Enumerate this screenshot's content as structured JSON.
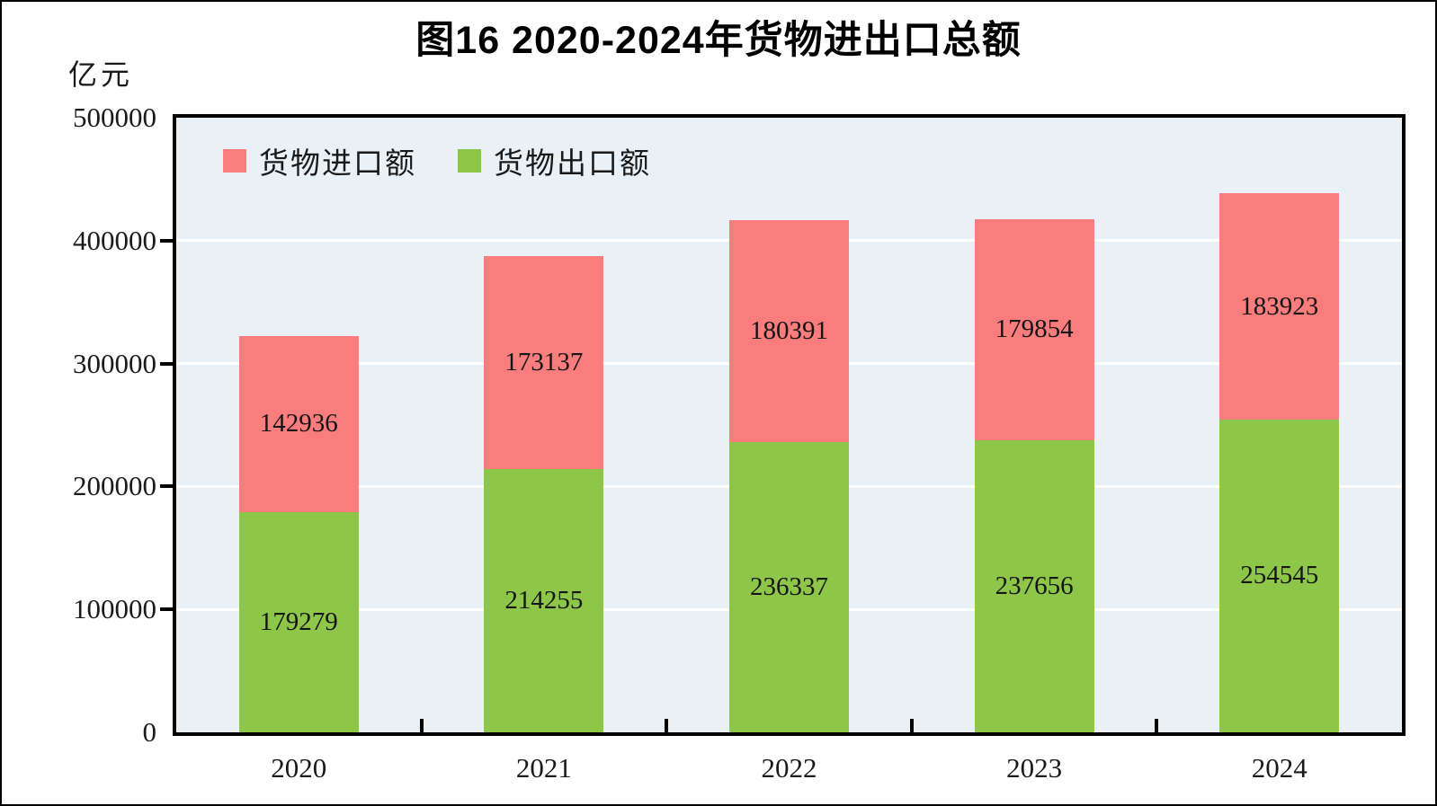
{
  "chart_data": {
    "type": "bar",
    "stacked": true,
    "title": "图16  2020-2024年货物进出口总额",
    "unit_label": "亿元",
    "categories": [
      "2020",
      "2021",
      "2022",
      "2023",
      "2024"
    ],
    "series": [
      {
        "name": "货物出口额",
        "color": "#8dc649",
        "values": [
          179279,
          214255,
          236337,
          237656,
          254545
        ]
      },
      {
        "name": "货物进口额",
        "color": "#f97d7d",
        "values": [
          142936,
          173137,
          180391,
          179854,
          183923
        ]
      }
    ],
    "legend_series_order": [
      1,
      0
    ],
    "legend_position": "top-left-inside",
    "ylim": [
      0,
      500000
    ],
    "ytick_step": 100000,
    "yticks": [
      "500000",
      "400000",
      "300000",
      "200000",
      "100000",
      "0"
    ],
    "grid": "horizontal-white",
    "colors": {
      "plot_background": "#e9f1f6",
      "gridline": "#ffffff",
      "axis": "#000000",
      "import_red": "#f97d7d",
      "export_green": "#8dc649"
    }
  }
}
